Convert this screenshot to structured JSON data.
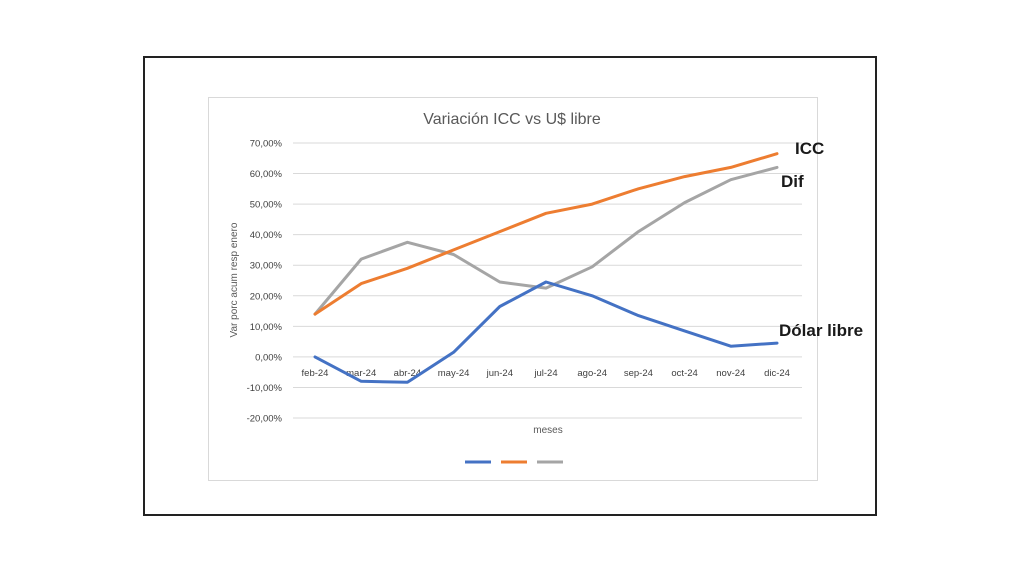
{
  "chart_data": {
    "type": "line",
    "title": "Variación ICC vs U$ libre",
    "xlabel": "meses",
    "ylabel": "Var porc acum resp enero",
    "categories": [
      "feb-24",
      "mar-24",
      "abr-24",
      "may-24",
      "jun-24",
      "jul-24",
      "ago-24",
      "sep-24",
      "oct-24",
      "nov-24",
      "dic-24"
    ],
    "yticks": [
      "70,00%",
      "60,00%",
      "50,00%",
      "40,00%",
      "30,00%",
      "20,00%",
      "10,00%",
      "0,00%",
      "-10,00%",
      "-20,00%"
    ],
    "ylim": [
      -20,
      70
    ],
    "grid": true,
    "legend": "bottom",
    "series": [
      {
        "name": "Dólar libre",
        "color": "#4472c4",
        "values": [
          0.0,
          -8.0,
          -8.3,
          1.5,
          16.5,
          24.5,
          20.0,
          13.5,
          8.5,
          3.5,
          4.5
        ]
      },
      {
        "name": "ICC",
        "color": "#ed7d31",
        "values": [
          14.0,
          24.0,
          29.0,
          35.0,
          41.0,
          47.0,
          50.0,
          55.0,
          59.0,
          62.0,
          66.5
        ]
      },
      {
        "name": "Dif",
        "color": "#a5a5a5",
        "values": [
          14.0,
          32.0,
          37.5,
          33.5,
          24.5,
          22.5,
          29.5,
          41.0,
          50.5,
          58.0,
          62.0
        ]
      }
    ]
  }
}
